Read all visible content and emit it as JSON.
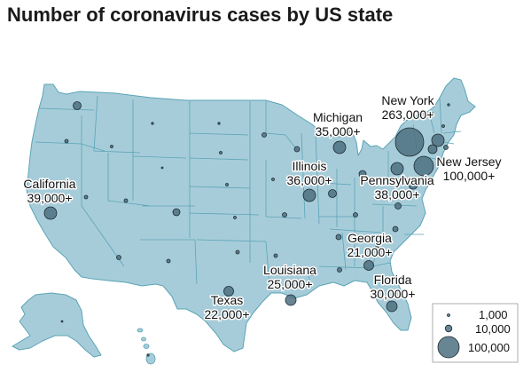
{
  "title": "Number of coronavirus cases by US state",
  "colors": {
    "land": "#a7ccd9",
    "border": "#5aa4b6",
    "bubble_fill": "#4e7080",
    "bubble_stroke": "#1d2c33",
    "legend_border": "#999999"
  },
  "labels": [
    {
      "id": "new-york",
      "state": "New York",
      "value": "263,000+"
    },
    {
      "id": "new-jersey",
      "state": "New Jersey",
      "value": "100,000+"
    },
    {
      "id": "michigan",
      "state": "Michigan",
      "value": "35,000+"
    },
    {
      "id": "illinois",
      "state": "Illinois",
      "value": "36,000+"
    },
    {
      "id": "pennsylvania",
      "state": "Pennsylvania",
      "value": "38,000+"
    },
    {
      "id": "california",
      "state": "California",
      "value": "39,000+"
    },
    {
      "id": "georgia",
      "state": "Georgia",
      "value": "21,000+"
    },
    {
      "id": "louisiana",
      "state": "Louisiana",
      "value": "25,000+"
    },
    {
      "id": "florida",
      "state": "Florida",
      "value": "30,000+"
    },
    {
      "id": "texas",
      "state": "Texas",
      "value": "22,000+"
    }
  ],
  "legend": [
    {
      "label": "1,000",
      "value": 1000
    },
    {
      "label": "10,000",
      "value": 10000
    },
    {
      "label": "100,000",
      "value": 100000
    }
  ]
}
